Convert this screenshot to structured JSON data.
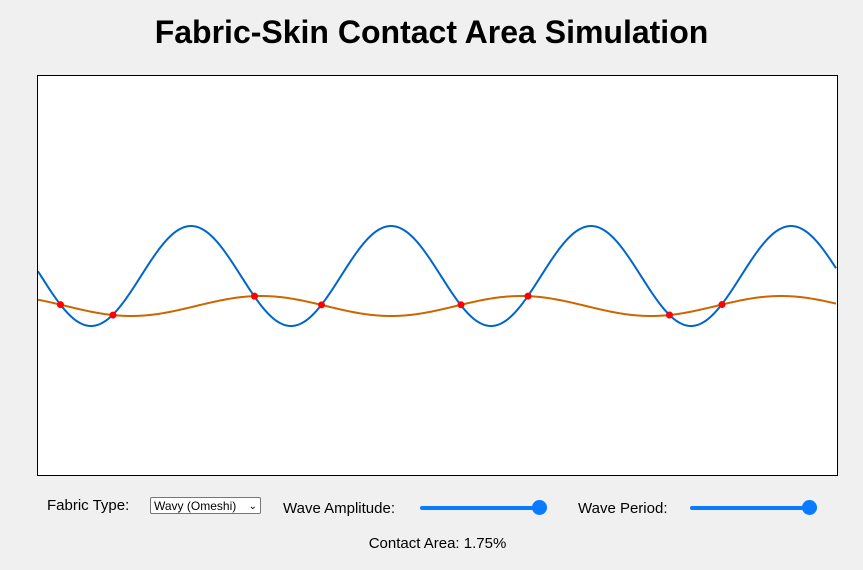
{
  "title": "Fabric-Skin Contact Area Simulation",
  "simulation": {
    "skin_color": "#cc6600",
    "fabric_color": "#0066cc",
    "contact_point_color": "#ff0000"
  },
  "controls": {
    "fabric_label": "Fabric Type:",
    "fabric_value": "Wavy (Omeshi)",
    "amplitude_label": "Wave Amplitude:",
    "amplitude_level": 1.0,
    "period_label": "Wave Period:",
    "period_level": 1.0
  },
  "contact_area_text": "Contact Area: 1.75%"
}
